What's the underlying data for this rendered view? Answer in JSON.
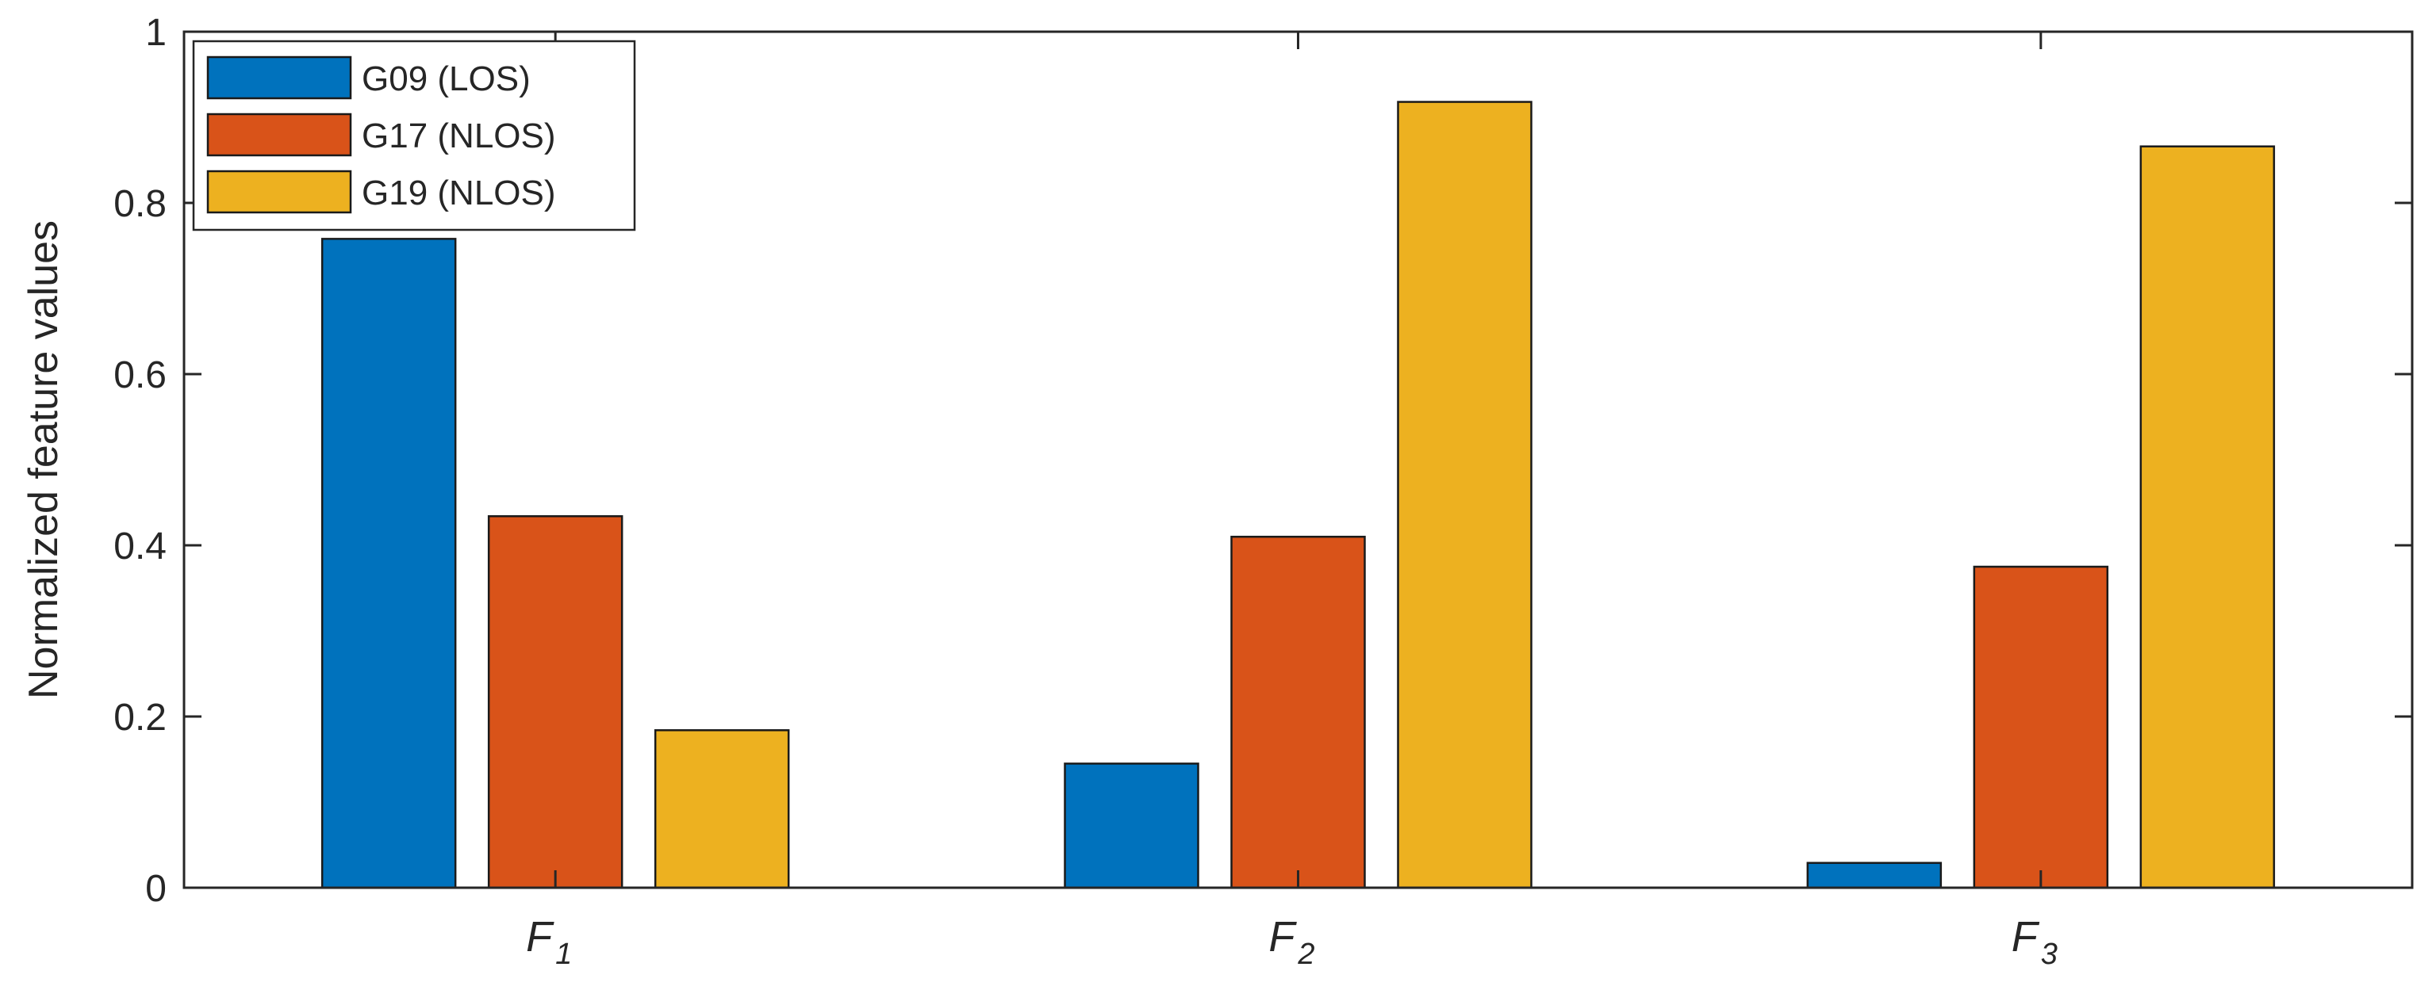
{
  "chart_data": {
    "type": "bar",
    "categories": [
      {
        "base": "F",
        "sub": "1"
      },
      {
        "base": "F",
        "sub": "2"
      },
      {
        "base": "F",
        "sub": "3"
      }
    ],
    "series": [
      {
        "name": "G09 (LOS)",
        "color": "#0072BD",
        "values": [
          0.758,
          0.145,
          0.029
        ]
      },
      {
        "name": "G17 (NLOS)",
        "color": "#D95319",
        "values": [
          0.434,
          0.41,
          0.375
        ]
      },
      {
        "name": "G19 (NLOS)",
        "color": "#EDB120",
        "values": [
          0.184,
          0.918,
          0.866
        ]
      }
    ],
    "ylabel": "Normalized feature values",
    "xlabel": "",
    "ylim": [
      0,
      1
    ],
    "yticks": [
      "0",
      "0.2",
      "0.4",
      "0.6",
      "0.8",
      "1"
    ],
    "grid": false,
    "legend_position": "top-left"
  }
}
